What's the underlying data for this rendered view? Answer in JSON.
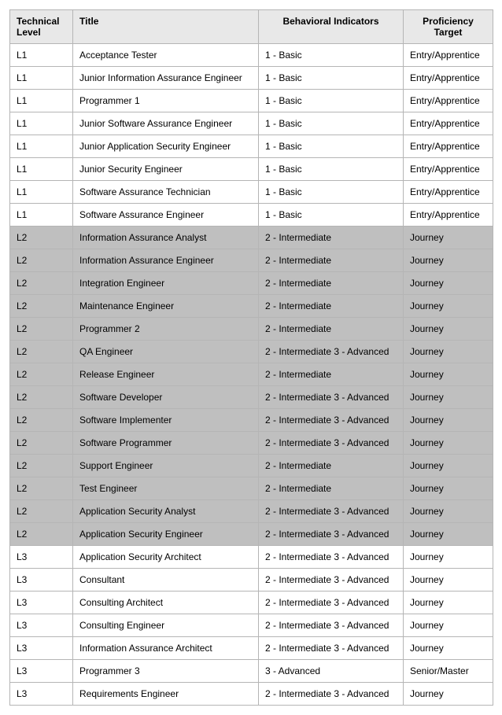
{
  "columns": {
    "technical_level_l1": "Technical",
    "technical_level_l2": "Level",
    "title": "Title",
    "behavioral": "Behavioral Indicators",
    "proficiency_l1": "Proficiency",
    "proficiency_l2": "Target"
  },
  "rows": [
    {
      "level": "L1",
      "title": "Acceptance Tester",
      "beh": "1 - Basic",
      "prof": "Entry/Apprentice",
      "shaded": false
    },
    {
      "level": "L1",
      "title": "Junior Information Assurance Engineer",
      "beh": "1 - Basic",
      "prof": "Entry/Apprentice",
      "shaded": false
    },
    {
      "level": "L1",
      "title": "Programmer 1",
      "beh": "1 - Basic",
      "prof": "Entry/Apprentice",
      "shaded": false
    },
    {
      "level": "L1",
      "title": "Junior Software Assurance Engineer",
      "beh": "1 - Basic",
      "prof": "Entry/Apprentice",
      "shaded": false
    },
    {
      "level": "L1",
      "title": "Junior Application Security Engineer",
      "beh": "1 - Basic",
      "prof": "Entry/Apprentice",
      "shaded": false
    },
    {
      "level": "L1",
      "title": "Junior Security Engineer",
      "beh": "1 - Basic",
      "prof": "Entry/Apprentice",
      "shaded": false
    },
    {
      "level": "L1",
      "title": "Software Assurance Technician",
      "beh": "1 - Basic",
      "prof": "Entry/Apprentice",
      "shaded": false
    },
    {
      "level": "L1",
      "title": "Software Assurance Engineer",
      "beh": "1 - Basic",
      "prof": "Entry/Apprentice",
      "shaded": false
    },
    {
      "level": "L2",
      "title": "Information Assurance Analyst",
      "beh": "2 - Intermediate",
      "prof": "Journey",
      "shaded": true
    },
    {
      "level": "L2",
      "title": "Information Assurance Engineer",
      "beh": "2 - Intermediate",
      "prof": "Journey",
      "shaded": true
    },
    {
      "level": "L2",
      "title": "Integration Engineer",
      "beh": "2 - Intermediate",
      "prof": "Journey",
      "shaded": true
    },
    {
      "level": "L2",
      "title": "Maintenance Engineer",
      "beh": "2 - Intermediate",
      "prof": "Journey",
      "shaded": true
    },
    {
      "level": "L2",
      "title": "Programmer 2",
      "beh": "2 - Intermediate",
      "prof": "Journey",
      "shaded": true
    },
    {
      "level": "L2",
      "title": "QA Engineer",
      "beh": "2 - Intermediate  3 - Advanced",
      "prof": "Journey",
      "shaded": true
    },
    {
      "level": "L2",
      "title": "Release Engineer",
      "beh": "2 - Intermediate",
      "prof": "Journey",
      "shaded": true
    },
    {
      "level": "L2",
      "title": "Software Developer",
      "beh": "2 - Intermediate  3 - Advanced",
      "prof": "Journey",
      "shaded": true
    },
    {
      "level": "L2",
      "title": "Software Implementer",
      "beh": "2 - Intermediate  3 - Advanced",
      "prof": "Journey",
      "shaded": true
    },
    {
      "level": "L2",
      "title": "Software Programmer",
      "beh": "2 - Intermediate  3 - Advanced",
      "prof": "Journey",
      "shaded": true
    },
    {
      "level": "L2",
      "title": "Support Engineer",
      "beh": "2 - Intermediate",
      "prof": "Journey",
      "shaded": true
    },
    {
      "level": "L2",
      "title": "Test Engineer",
      "beh": "2 - Intermediate",
      "prof": "Journey",
      "shaded": true
    },
    {
      "level": "L2",
      "title": "Application Security Analyst",
      "beh": "2 - Intermediate  3 - Advanced",
      "prof": "Journey",
      "shaded": true
    },
    {
      "level": "L2",
      "title": "Application Security Engineer",
      "beh": "2 - Intermediate  3 - Advanced",
      "prof": "Journey",
      "shaded": true
    },
    {
      "level": "L3",
      "title": "Application Security Architect",
      "beh": "2 - Intermediate  3 - Advanced",
      "prof": "Journey",
      "shaded": false
    },
    {
      "level": "L3",
      "title": "Consultant",
      "beh": "2 - Intermediate  3 - Advanced",
      "prof": "Journey",
      "shaded": false
    },
    {
      "level": "L3",
      "title": "Consulting Architect",
      "beh": "2 - Intermediate  3 - Advanced",
      "prof": "Journey",
      "shaded": false
    },
    {
      "level": "L3",
      "title": "Consulting Engineer",
      "beh": "2 - Intermediate  3 - Advanced",
      "prof": "Journey",
      "shaded": false
    },
    {
      "level": "L3",
      "title": "Information Assurance Architect",
      "beh": "2 - Intermediate  3 - Advanced",
      "prof": "Journey",
      "shaded": false
    },
    {
      "level": "L3",
      "title": "Programmer 3",
      "beh": "3 - Advanced",
      "prof": "Senior/Master",
      "shaded": false
    },
    {
      "level": "L3",
      "title": "Requirements Engineer",
      "beh": "2 - Intermediate  3 - Advanced",
      "prof": "Journey",
      "shaded": false
    }
  ]
}
